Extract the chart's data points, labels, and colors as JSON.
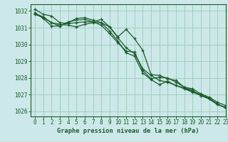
{
  "title": "Graphe pression niveau de la mer (hPa)",
  "background_color": "#cce8e8",
  "grid_color": "#99ccbb",
  "line_color": "#1a5c2a",
  "spine_color": "#1a5c2a",
  "xlim": [
    -0.5,
    23
  ],
  "ylim": [
    1025.7,
    1032.4
  ],
  "yticks": [
    1026,
    1027,
    1028,
    1029,
    1030,
    1031,
    1032
  ],
  "xticks": [
    0,
    1,
    2,
    3,
    4,
    5,
    6,
    7,
    8,
    9,
    10,
    11,
    12,
    13,
    14,
    15,
    16,
    17,
    18,
    19,
    20,
    21,
    22,
    23
  ],
  "series": [
    [
      1032.1,
      1031.8,
      1031.7,
      1031.3,
      1031.25,
      1031.3,
      1031.35,
      1031.35,
      1031.5,
      1031.05,
      1030.45,
      1030.9,
      1030.35,
      1029.65,
      1028.2,
      1028.15,
      1027.95,
      1027.85,
      1027.45,
      1027.35,
      1027.05,
      1026.85,
      1026.55,
      1026.35
    ],
    [
      1031.85,
      1031.65,
      1031.3,
      1031.1,
      1031.3,
      1031.55,
      1031.6,
      1031.45,
      1031.3,
      1031.05,
      1030.4,
      1029.8,
      1029.45,
      1028.55,
      1028.15,
      1027.85,
      1027.75,
      1027.55,
      1027.4,
      1027.2,
      1027.0,
      1026.8,
      1026.45,
      1026.2
    ],
    [
      1031.8,
      1031.6,
      1031.3,
      1031.2,
      1031.15,
      1031.05,
      1031.2,
      1031.3,
      1031.3,
      1030.8,
      1030.2,
      1029.5,
      1029.3,
      1028.3,
      1027.9,
      1027.6,
      1027.8,
      1027.55,
      1027.35,
      1027.15,
      1026.95,
      1026.75,
      1026.45,
      1026.2
    ],
    [
      1031.9,
      1031.55,
      1031.1,
      1031.1,
      1031.35,
      1031.45,
      1031.5,
      1031.35,
      1031.15,
      1030.65,
      1030.1,
      1029.6,
      1029.55,
      1028.45,
      1027.95,
      1028.05,
      1028.0,
      1027.75,
      1027.45,
      1027.25,
      1026.95,
      1026.75,
      1026.4,
      1026.25
    ]
  ]
}
